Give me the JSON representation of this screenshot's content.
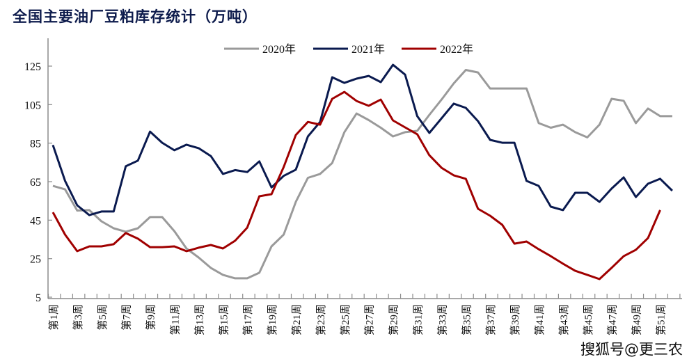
{
  "title": "全国主要油厂豆粕库存统计（万吨）",
  "watermark": "搜狐号@更三农",
  "chart_data": {
    "type": "line",
    "title": "全国主要油厂豆粕库存统计（万吨）",
    "xlabel": "",
    "ylabel": "",
    "ylim": [
      5,
      125
    ],
    "yticks": [
      5,
      25,
      45,
      65,
      85,
      105,
      125
    ],
    "grid": false,
    "legend_position": "top-center",
    "x": [
      "第1周",
      "第2周",
      "第3周",
      "第4周",
      "第5周",
      "第6周",
      "第7周",
      "第8周",
      "第9周",
      "第10周",
      "第11周",
      "第12周",
      "第13周",
      "第14周",
      "第15周",
      "第16周",
      "第17周",
      "第18周",
      "第19周",
      "第20周",
      "第21周",
      "第22周",
      "第23周",
      "第24周",
      "第25周",
      "第26周",
      "第27周",
      "第28周",
      "第29周",
      "第30周",
      "第31周",
      "第32周",
      "第33周",
      "第34周",
      "第35周",
      "第36周",
      "第37周",
      "第38周",
      "第39周",
      "第40周",
      "第41周",
      "第42周",
      "第43周",
      "第44周",
      "第45周",
      "第46周",
      "第47周",
      "第48周",
      "第49周",
      "第50周",
      "第51周",
      "第52周"
    ],
    "xtick_labels": [
      "第1周",
      "第3周",
      "第5周",
      "第7周",
      "第9周",
      "第11周",
      "第13周",
      "第15周",
      "第17周",
      "第19周",
      "第21周",
      "第23周",
      "第25周",
      "第27周",
      "第29周",
      "第31周",
      "第33周",
      "第35周",
      "第37周",
      "第39周",
      "第41周",
      "第43周",
      "第45周",
      "第47周",
      "第49周",
      "第51周"
    ],
    "series": [
      {
        "name": "2020年",
        "color": "#9a9a9a",
        "values": [
          62.8,
          61,
          50,
          50.2,
          44.4,
          40.8,
          39,
          40.8,
          46.6,
          46.6,
          39.3,
          30.3,
          25.6,
          20.2,
          16.6,
          14.8,
          14.8,
          17.7,
          31.4,
          37.5,
          54.5,
          67,
          69,
          74.7,
          90.7,
          100.4,
          97,
          93,
          88.5,
          90.7,
          91.4,
          99.7,
          107.6,
          116,
          123,
          121.7,
          113.4,
          113.4,
          113.4,
          113.4,
          95.4,
          93,
          94.6,
          90.7,
          88,
          94.6,
          108,
          107,
          95.4,
          103,
          99,
          99
        ]
      },
      {
        "name": "2021年",
        "color": "#0a1a4f",
        "values": [
          84,
          65.4,
          52.7,
          47.6,
          49.5,
          49.5,
          73,
          75.9,
          91,
          85.2,
          81.3,
          84.2,
          82.4,
          78.3,
          69,
          71,
          70,
          75.5,
          62,
          68,
          71.2,
          88.5,
          96,
          119.2,
          116.3,
          118.5,
          119.9,
          116.7,
          125.7,
          120.6,
          99,
          90.3,
          97.9,
          105.5,
          103.3,
          96.4,
          86.7,
          85.2,
          85.2,
          65.4,
          62.8,
          52,
          50.2,
          59.2,
          59.2,
          54.5,
          61.4,
          67.2,
          57,
          63.9,
          66.5,
          60.3
        ]
      },
      {
        "name": "2022年",
        "color": "#a00000",
        "values": [
          49.1,
          37.5,
          28.9,
          31.4,
          31.4,
          32.5,
          38.3,
          35.4,
          31,
          31,
          31.4,
          28.9,
          30.7,
          32.1,
          30.3,
          34.3,
          41.1,
          57.4,
          58.5,
          72.6,
          89.2,
          96,
          94.6,
          108,
          111.6,
          106.9,
          104.4,
          107.6,
          96.8,
          93.2,
          89.6,
          78.7,
          72.2,
          68.3,
          66.5,
          50.9,
          47.3,
          42.6,
          32.8,
          33.9,
          29.9,
          26.3,
          22.4,
          18.7,
          16.6,
          14.4,
          20.2,
          26.3,
          29.6,
          35.7,
          50.2,
          null
        ]
      }
    ]
  }
}
